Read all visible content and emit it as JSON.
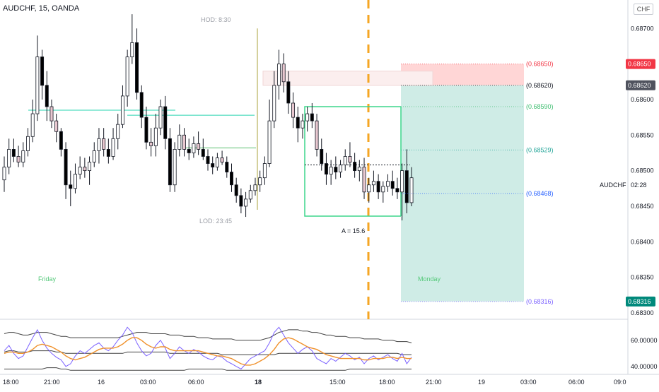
{
  "header": {
    "title": "AUDCHF, 15, OANDA",
    "currency": "CHF",
    "symbol": "AUDCHF",
    "countdown": "02:28"
  },
  "colors": {
    "bull_body": "#ffffff",
    "bear_body": "#000000",
    "pink_body": "#e8c8d0",
    "stop_zone": "#ffd6d6",
    "target_zone": "#cfece6",
    "teal_line": "#2ad4b0",
    "green_box": "#3dd68c",
    "session_line": "#f5a623",
    "rsi_line": "#7b61ff",
    "rsi_ma": "#f0912b",
    "band_line": "#444444",
    "red_badge": "#f23645",
    "dark_badge": "#50535e",
    "teal_badge": "#00897b"
  },
  "chart_data": [
    {
      "type": "candlestick",
      "title": "AUDCHF, 15, OANDA",
      "ylim": [
        0.68293,
        0.6874
      ],
      "y_ticks": [
        "0.68700",
        "0.68650",
        "0.68600",
        "0.68550",
        "0.68500",
        "0.68450",
        "0.68400",
        "0.68350",
        "0.68300"
      ],
      "x_ticks": [
        "18:00",
        "21:00",
        "16",
        "03:00",
        "06:00",
        "18",
        "15:00",
        "18:00",
        "21:00",
        "19",
        "03:00",
        "06:00",
        "09:0"
      ],
      "session_labels": [
        "Friday",
        "Monday"
      ],
      "annotations": {
        "hod": "HOD: 8:30",
        "lod": "LOD: 23:45",
        "range": "A = 15.6"
      },
      "levels": [
        {
          "label": "(0.68650)",
          "value": 0.6865,
          "color": "#f23645"
        },
        {
          "label": "(0.68620)",
          "value": 0.6862,
          "color": "#131722"
        },
        {
          "label": "(0.68590)",
          "value": 0.6859,
          "color": "#3dbd6f"
        },
        {
          "label": "(0.68529)",
          "value": 0.68529,
          "color": "#26a69a"
        },
        {
          "label": "(0.68468)",
          "value": 0.68468,
          "color": "#2962ff"
        },
        {
          "label": "(0.68316)",
          "value": 0.68316,
          "color": "#7b61ff"
        }
      ],
      "price_badges": [
        {
          "text": "0.68650",
          "value": 0.6865,
          "color": "#f23645"
        },
        {
          "text": "0.68620",
          "value": 0.6862,
          "color": "#50535e"
        },
        {
          "text": "0.68316",
          "value": 0.68316,
          "color": "#00897b"
        }
      ],
      "candles": [
        [
          0.68487,
          0.6852,
          0.6847,
          0.68505
        ],
        [
          0.68505,
          0.68545,
          0.68495,
          0.6853
        ],
        [
          0.6853,
          0.68545,
          0.68512,
          0.6852
        ],
        [
          0.6852,
          0.68535,
          0.68505,
          0.68512
        ],
        [
          0.68512,
          0.6854,
          0.68505,
          0.68528
        ],
        [
          0.68528,
          0.6856,
          0.6852,
          0.68548
        ],
        [
          0.68548,
          0.686,
          0.6854,
          0.6858
        ],
        [
          0.6858,
          0.6869,
          0.6857,
          0.6866
        ],
        [
          0.6866,
          0.6867,
          0.686,
          0.6862
        ],
        [
          0.6862,
          0.6864,
          0.6857,
          0.6859
        ],
        [
          0.6859,
          0.686,
          0.6856,
          0.6857
        ],
        [
          0.6857,
          0.6858,
          0.6854,
          0.68555
        ],
        [
          0.68555,
          0.6856,
          0.6852,
          0.6853
        ],
        [
          0.6853,
          0.6854,
          0.6846,
          0.6848
        ],
        [
          0.6848,
          0.685,
          0.6845,
          0.68475
        ],
        [
          0.68475,
          0.6851,
          0.68468,
          0.68495
        ],
        [
          0.68495,
          0.6852,
          0.68488,
          0.68505
        ],
        [
          0.68505,
          0.68518,
          0.6849,
          0.685
        ],
        [
          0.685,
          0.6852,
          0.6848,
          0.68512
        ],
        [
          0.68512,
          0.6854,
          0.68505,
          0.68528
        ],
        [
          0.68528,
          0.6856,
          0.6851,
          0.68545
        ],
        [
          0.68545,
          0.6856,
          0.6852,
          0.6853
        ],
        [
          0.6853,
          0.68545,
          0.6851,
          0.6852
        ],
        [
          0.6852,
          0.6856,
          0.68515,
          0.68545
        ],
        [
          0.68545,
          0.6858,
          0.6853,
          0.68565
        ],
        [
          0.68565,
          0.6862,
          0.6856,
          0.68605
        ],
        [
          0.68605,
          0.6867,
          0.6859,
          0.6866
        ],
        [
          0.6866,
          0.6872,
          0.6865,
          0.6868
        ],
        [
          0.6868,
          0.687,
          0.686,
          0.6861
        ],
        [
          0.6861,
          0.6862,
          0.6856,
          0.68575
        ],
        [
          0.68575,
          0.6859,
          0.6853,
          0.6854
        ],
        [
          0.6854,
          0.6856,
          0.6852,
          0.68535
        ],
        [
          0.68535,
          0.6858,
          0.6852,
          0.6856
        ],
        [
          0.6856,
          0.686,
          0.6855,
          0.6859
        ],
        [
          0.6859,
          0.68605,
          0.6853,
          0.68545
        ],
        [
          0.68545,
          0.6856,
          0.6847,
          0.6848
        ],
        [
          0.6848,
          0.6854,
          0.6847,
          0.6853
        ],
        [
          0.6853,
          0.68565,
          0.6852,
          0.6855
        ],
        [
          0.6855,
          0.6856,
          0.6852,
          0.6853
        ],
        [
          0.6853,
          0.68545,
          0.68515,
          0.68525
        ],
        [
          0.68525,
          0.68548,
          0.68518,
          0.68538
        ],
        [
          0.68538,
          0.68555,
          0.68522,
          0.6853
        ],
        [
          0.6853,
          0.68545,
          0.68515,
          0.6852
        ],
        [
          0.6852,
          0.6853,
          0.685,
          0.6851
        ],
        [
          0.6851,
          0.6852,
          0.68495,
          0.68505
        ],
        [
          0.68505,
          0.68525,
          0.685,
          0.68518
        ],
        [
          0.68518,
          0.68528,
          0.68508,
          0.68512
        ],
        [
          0.68512,
          0.6852,
          0.6849,
          0.68498
        ],
        [
          0.68498,
          0.6851,
          0.6847,
          0.6848
        ],
        [
          0.6848,
          0.6849,
          0.68455,
          0.68465
        ],
        [
          0.68465,
          0.68475,
          0.6844,
          0.6845
        ],
        [
          0.6845,
          0.6847,
          0.68435,
          0.6846
        ],
        [
          0.6846,
          0.6848,
          0.68455,
          0.68472
        ],
        [
          0.68472,
          0.6849,
          0.68465,
          0.6848
        ],
        [
          0.6848,
          0.685,
          0.6847,
          0.6849
        ],
        [
          0.6849,
          0.6852,
          0.6848,
          0.6851
        ],
        [
          0.6851,
          0.686,
          0.68505,
          0.6857
        ],
        [
          0.6857,
          0.6864,
          0.6856,
          0.6862
        ],
        [
          0.6862,
          0.6867,
          0.686,
          0.6865
        ],
        [
          0.6865,
          0.68665,
          0.6861,
          0.68625
        ],
        [
          0.68625,
          0.6864,
          0.6858,
          0.68595
        ],
        [
          0.68595,
          0.6861,
          0.6856,
          0.68575
        ],
        [
          0.68575,
          0.6859,
          0.6854,
          0.6856
        ],
        [
          0.6856,
          0.6858,
          0.68545,
          0.6857
        ],
        [
          0.6857,
          0.6859,
          0.68555,
          0.6858
        ],
        [
          0.6858,
          0.68595,
          0.6856,
          0.6857
        ],
        [
          0.6857,
          0.6858,
          0.6852,
          0.6853
        ],
        [
          0.6853,
          0.68545,
          0.685,
          0.6851
        ],
        [
          0.6851,
          0.68525,
          0.6848,
          0.68495
        ],
        [
          0.68495,
          0.68515,
          0.6848,
          0.68505
        ],
        [
          0.68505,
          0.6852,
          0.68488,
          0.68498
        ],
        [
          0.68498,
          0.68515,
          0.6849,
          0.68508
        ],
        [
          0.68508,
          0.6853,
          0.685,
          0.6852
        ],
        [
          0.6852,
          0.6854,
          0.68505,
          0.68512
        ],
        [
          0.68512,
          0.68525,
          0.6849,
          0.685
        ],
        [
          0.685,
          0.68515,
          0.68485,
          0.68505
        ],
        [
          0.68505,
          0.68518,
          0.6846,
          0.6847
        ],
        [
          0.6847,
          0.6849,
          0.68455,
          0.6848
        ],
        [
          0.6848,
          0.685,
          0.6847,
          0.68485
        ],
        [
          0.68485,
          0.68495,
          0.6846,
          0.6847
        ],
        [
          0.6847,
          0.68485,
          0.68455,
          0.68478
        ],
        [
          0.68478,
          0.68495,
          0.6847,
          0.68485
        ],
        [
          0.68485,
          0.685,
          0.68465,
          0.68475
        ],
        [
          0.68475,
          0.6849,
          0.6846,
          0.6847
        ],
        [
          0.6847,
          0.6851,
          0.6843,
          0.685
        ],
        [
          0.685,
          0.6853,
          0.6844,
          0.68455
        ],
        [
          0.68455,
          0.68505,
          0.6845,
          0.6849
        ]
      ],
      "rsi_ylim": [
        35,
        75
      ],
      "rsi_ticks": [
        "60.00000",
        "40.00000"
      ],
      "rsi": [
        52,
        56,
        50,
        46,
        48,
        55,
        62,
        68,
        60,
        54,
        50,
        47,
        45,
        40,
        42,
        48,
        52,
        50,
        53,
        56,
        58,
        54,
        52,
        55,
        60,
        64,
        70,
        66,
        58,
        52,
        48,
        50,
        56,
        60,
        54,
        46,
        50,
        55,
        52,
        50,
        53,
        51,
        48,
        46,
        45,
        48,
        47,
        44,
        42,
        40,
        38,
        42,
        46,
        48,
        50,
        52,
        58,
        66,
        70,
        64,
        58,
        54,
        50,
        53,
        55,
        52,
        46,
        44,
        42,
        46,
        44,
        47,
        50,
        48,
        45,
        47,
        42,
        46,
        48,
        45,
        47,
        49,
        46,
        44,
        50,
        42,
        47
      ],
      "rsi_ma": [
        50,
        51,
        51,
        50,
        50,
        51,
        53,
        56,
        57,
        56,
        55,
        53,
        51,
        48,
        46,
        45,
        46,
        47,
        49,
        51,
        53,
        54,
        54,
        54,
        55,
        57,
        60,
        62,
        62,
        60,
        57,
        55,
        54,
        55,
        55,
        53,
        52,
        52,
        52,
        52,
        52,
        52,
        51,
        50,
        49,
        48,
        48,
        47,
        46,
        44,
        42,
        41,
        41,
        42,
        44,
        46,
        49,
        53,
        58,
        61,
        62,
        61,
        59,
        57,
        55,
        54,
        53,
        51,
        49,
        48,
        47,
        46,
        46,
        46,
        46,
        46,
        45,
        45,
        46,
        46,
        46,
        47,
        47,
        46,
        47,
        46,
        46
      ],
      "band_upper": [
        65,
        66,
        66,
        65,
        64,
        64,
        65,
        66,
        66,
        66,
        65,
        64,
        63,
        63,
        62,
        62,
        62,
        62,
        62,
        62,
        62,
        62,
        62,
        62,
        62,
        63,
        64,
        65,
        66,
        66,
        66,
        65,
        65,
        65,
        65,
        64,
        64,
        64,
        63,
        63,
        63,
        62,
        62,
        62,
        61,
        61,
        61,
        61,
        61,
        60,
        60,
        60,
        60,
        60,
        60,
        61,
        62,
        64,
        66,
        67,
        68,
        68,
        68,
        67,
        67,
        66,
        66,
        65,
        64,
        64,
        63,
        63,
        63,
        62,
        62,
        62,
        61,
        61,
        61,
        61,
        60,
        60,
        60,
        59,
        59,
        59,
        58
      ],
      "band_lower": [
        38,
        38,
        38,
        38,
        38,
        38,
        38,
        38,
        38,
        39,
        39,
        39,
        38,
        38,
        37,
        37,
        37,
        37,
        37,
        37,
        37,
        37,
        37,
        37,
        37,
        37,
        37,
        37,
        37,
        37,
        37,
        37,
        37,
        37,
        37,
        37,
        37,
        37,
        37,
        38,
        38,
        38,
        38,
        38,
        38,
        38,
        38,
        37,
        37,
        37,
        37,
        37,
        37,
        37,
        37,
        37,
        37,
        37,
        37,
        37,
        37,
        37,
        37,
        37,
        37,
        37,
        37,
        37,
        37,
        37,
        37,
        37,
        37,
        38,
        38,
        38,
        38,
        38,
        38,
        38,
        38,
        38,
        38,
        38,
        38,
        38,
        38
      ],
      "band_mid": [
        51,
        52,
        52,
        51,
        51,
        51,
        52,
        52,
        52,
        52,
        52,
        51,
        51,
        50,
        50,
        50,
        50,
        50,
        50,
        50,
        50,
        50,
        50,
        50,
        50,
        50,
        51,
        51,
        51,
        51,
        51,
        51,
        51,
        51,
        51,
        50,
        50,
        50,
        50,
        50,
        50,
        50,
        50,
        50,
        50,
        50,
        49,
        49,
        49,
        49,
        49,
        49,
        49,
        49,
        49,
        49,
        49,
        49,
        50,
        50,
        50,
        50,
        50,
        50,
        50,
        50,
        50,
        50,
        50,
        50,
        50,
        50,
        50,
        50,
        50,
        50,
        50,
        50,
        50,
        50,
        50,
        50,
        50,
        50,
        49,
        49,
        49
      ]
    }
  ]
}
